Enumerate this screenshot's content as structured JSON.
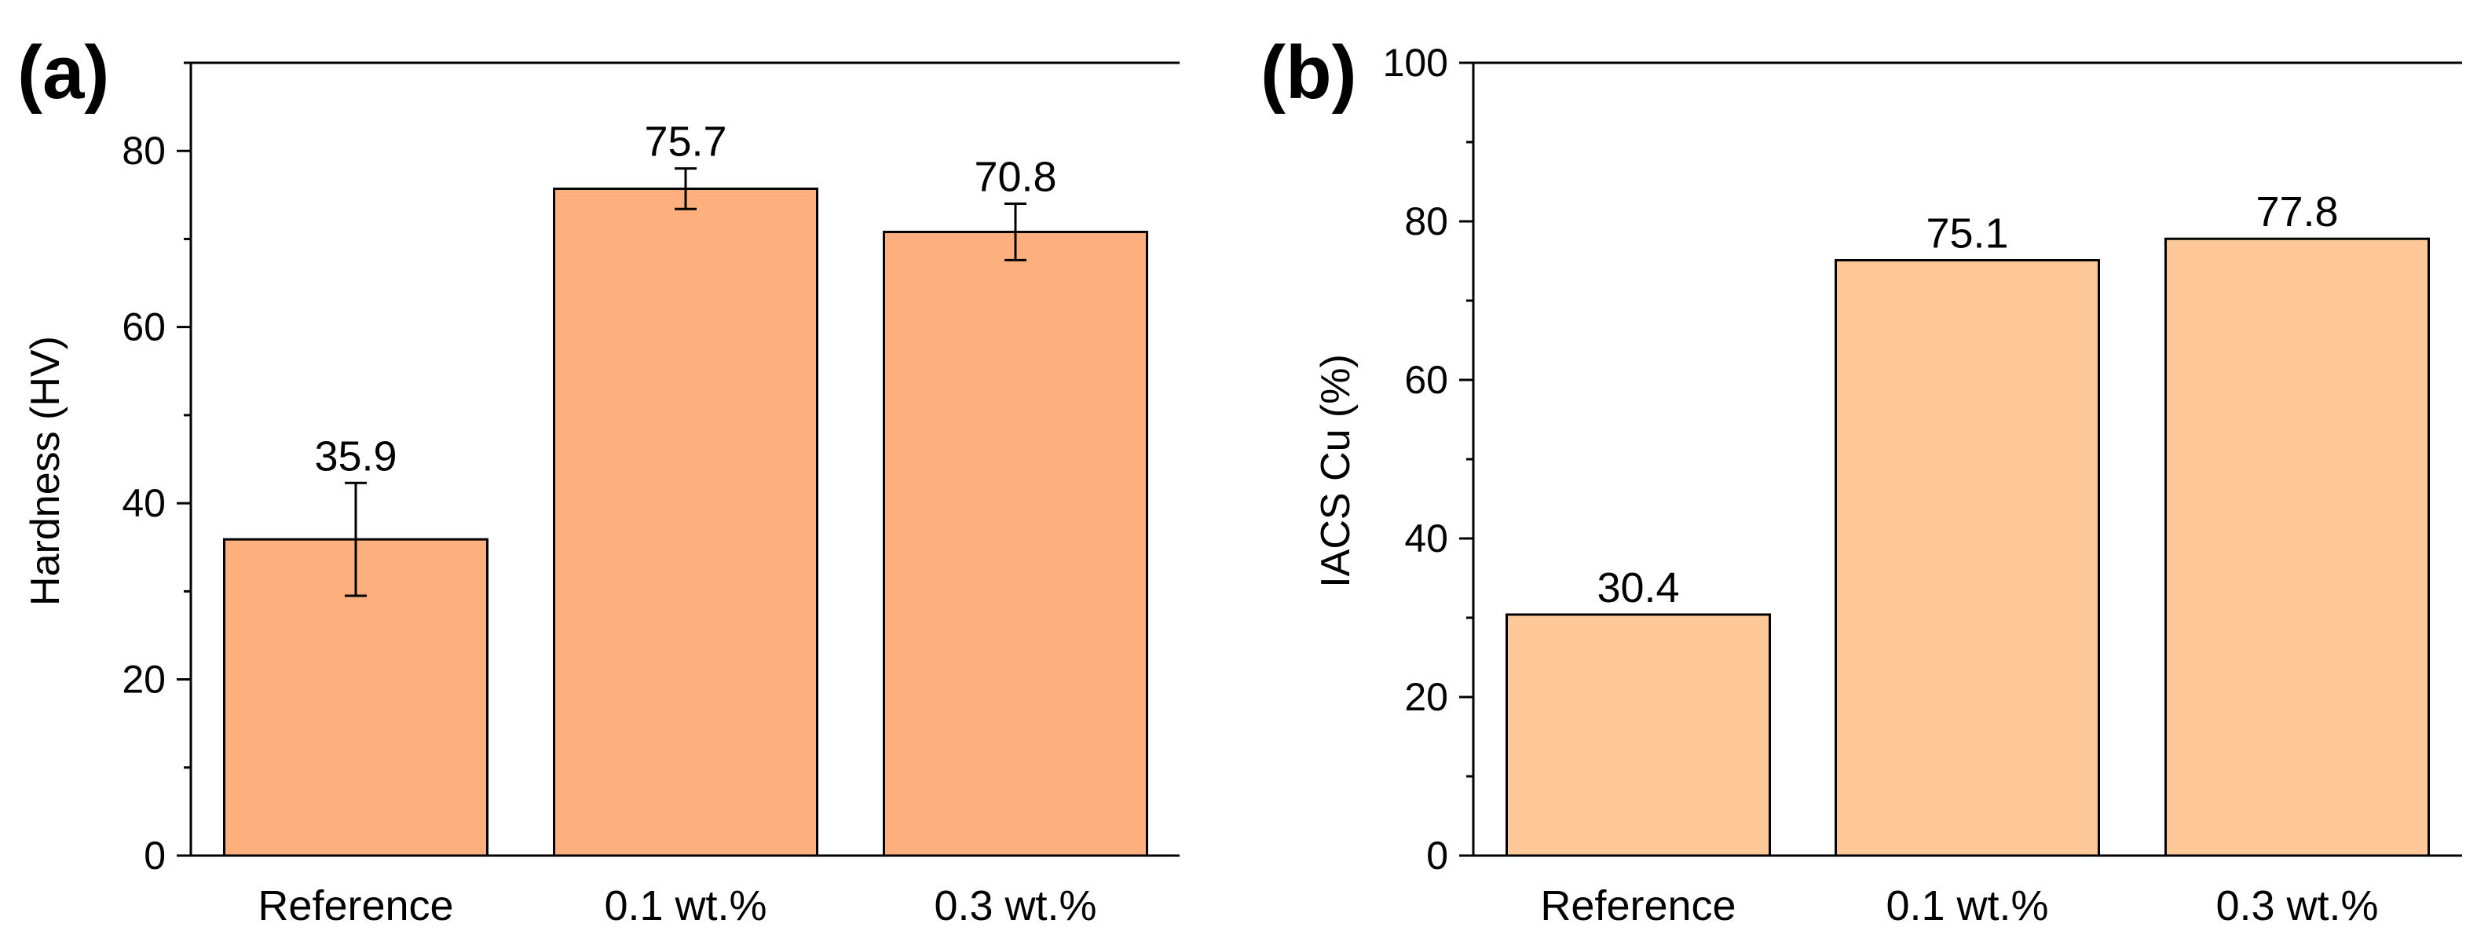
{
  "chart_data": [
    {
      "type": "bar",
      "panel_label": "(a)",
      "categories": [
        "Reference",
        "0.1 wt.%",
        "0.3 wt.%"
      ],
      "values": [
        35.9,
        75.7,
        70.8
      ],
      "errors": [
        6.4,
        2.3,
        3.2
      ],
      "data_labels": [
        "35.9",
        "75.7",
        "70.8"
      ],
      "title": "",
      "xlabel": "",
      "ylabel": "Hardness (HV)",
      "ylim": [
        0,
        90
      ],
      "yticks": [
        0,
        20,
        40,
        60,
        80
      ],
      "yticks_labels": [
        "0",
        "20",
        "40",
        "60",
        "80"
      ],
      "minor_step": 10,
      "bar_color": "#FDB07E",
      "grid": false,
      "legend": "none"
    },
    {
      "type": "bar",
      "panel_label": "(b)",
      "categories": [
        "Reference",
        "0.1 wt.%",
        "0.3 wt.%"
      ],
      "values": [
        30.4,
        75.1,
        77.8
      ],
      "errors": [],
      "data_labels": [
        "30.4",
        "75.1",
        "77.8"
      ],
      "title": "",
      "xlabel": "",
      "ylabel": "IACS Cu (%)",
      "ylim": [
        0,
        100
      ],
      "yticks": [
        0,
        20,
        40,
        60,
        80,
        100
      ],
      "yticks_labels": [
        "0",
        "20",
        "40",
        "60",
        "80",
        "100"
      ],
      "minor_step": 10,
      "bar_color": "#FFC898",
      "grid": false,
      "legend": "none"
    }
  ]
}
